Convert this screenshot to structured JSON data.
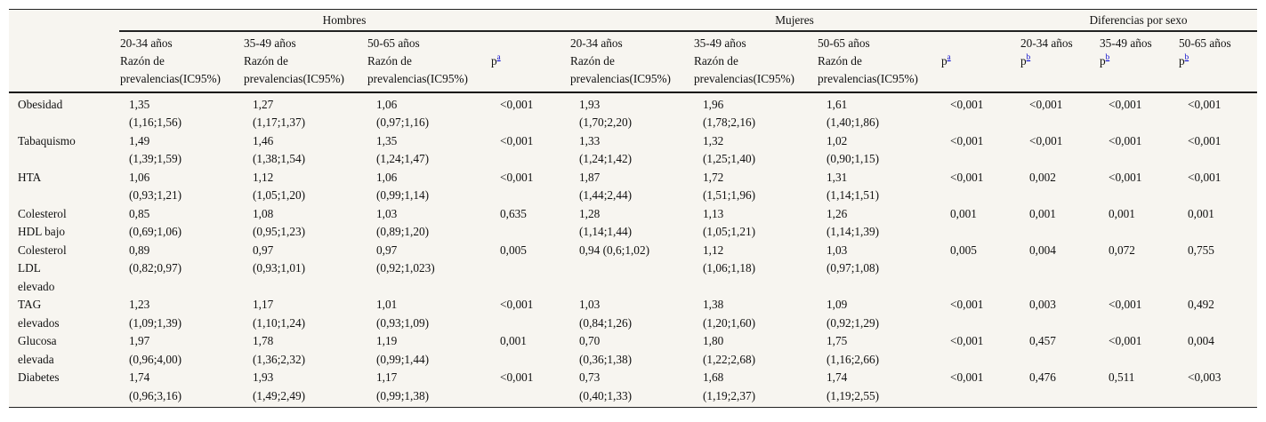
{
  "header": {
    "groups": [
      "Hombres",
      "Mujeres",
      "Diferencias por sexo"
    ],
    "age_groups": [
      "20-34 años",
      "35-49 años",
      "50-65 años"
    ],
    "rp_line1": "Razón de",
    "rp_line2": "prevalencias(IC95%)",
    "p_label": "p",
    "sup_a": "a",
    "sup_b": "b"
  },
  "rows": [
    {
      "label": [
        "Obesidad"
      ],
      "men": [
        [
          "1,35",
          "(1,16;1,56)"
        ],
        [
          "1,27",
          "(1,17;1,37)"
        ],
        [
          "1,06",
          "(0,97;1,16)"
        ]
      ],
      "men_p": "<0,001",
      "women": [
        [
          "1,93",
          "(1,70;2,20)"
        ],
        [
          "1,96",
          "(1,78;2,16)"
        ],
        [
          "1,61",
          "(1,40;1,86)"
        ]
      ],
      "women_p": "<0,001",
      "diff": [
        "<0,001",
        "<0,001",
        "<0,001"
      ]
    },
    {
      "label": [
        "Tabaquismo"
      ],
      "men": [
        [
          "1,49",
          "(1,39;1,59)"
        ],
        [
          "1,46",
          "(1,38;1,54)"
        ],
        [
          "1,35",
          "(1,24;1,47)"
        ]
      ],
      "men_p": "<0,001",
      "women": [
        [
          "1,33",
          "(1,24;1,42)"
        ],
        [
          "1,32",
          "(1,25;1,40)"
        ],
        [
          "1,02",
          "(0,90;1,15)"
        ]
      ],
      "women_p": "<0,001",
      "diff": [
        "<0,001",
        "<0,001",
        "<0,001"
      ]
    },
    {
      "label": [
        "HTA"
      ],
      "men": [
        [
          "1,06",
          "(0,93;1,21)"
        ],
        [
          "1,12",
          "(1,05;1,20)"
        ],
        [
          "1,06",
          "(0,99;1,14)"
        ]
      ],
      "men_p": "<0,001",
      "women": [
        [
          "1,87",
          "(1,44;2,44)"
        ],
        [
          "1,72",
          "(1,51;1,96)"
        ],
        [
          "1,31",
          "(1,14;1,51)"
        ]
      ],
      "women_p": "<0,001",
      "diff": [
        "0,002",
        "<0,001",
        "<0,001"
      ]
    },
    {
      "label": [
        "Colesterol",
        "HDL bajo"
      ],
      "men": [
        [
          "0,85",
          "(0,69;1,06)"
        ],
        [
          "1,08",
          "(0,95;1,23)"
        ],
        [
          "1,03",
          "(0,89;1,20)"
        ]
      ],
      "men_p": "0,635",
      "women": [
        [
          "1,28",
          "(1,14;1,44)"
        ],
        [
          "1,13",
          "(1,05;1,21)"
        ],
        [
          "1,26",
          "(1,14;1,39)"
        ]
      ],
      "women_p": "0,001",
      "diff": [
        "0,001",
        "0,001",
        "0,001"
      ]
    },
    {
      "label": [
        "Colesterol",
        "LDL",
        "elevado"
      ],
      "men": [
        [
          "0,89",
          "(0,82;0,97)"
        ],
        [
          "0,97",
          "(0,93;1,01)"
        ],
        [
          "0,97",
          "(0,92;1,023)"
        ]
      ],
      "men_p": "0,005",
      "women": [
        [
          "0,94 (0,6;1,02)",
          ""
        ],
        [
          "1,12",
          "(1,06;1,18)"
        ],
        [
          "1,03",
          "(0,97;1,08)"
        ]
      ],
      "women_p": "0,005",
      "diff": [
        "0,004",
        "0,072",
        "0,755"
      ]
    },
    {
      "label": [
        "TAG",
        "elevados"
      ],
      "men": [
        [
          "1,23",
          "(1,09;1,39)"
        ],
        [
          "1,17",
          "(1,10;1,24)"
        ],
        [
          "1,01",
          "(0,93;1,09)"
        ]
      ],
      "men_p": "<0,001",
      "women": [
        [
          "1,03",
          "(0,84;1,26)"
        ],
        [
          "1,38",
          "(1,20;1,60)"
        ],
        [
          "1,09",
          "(0,92;1,29)"
        ]
      ],
      "women_p": "<0,001",
      "diff": [
        "0,003",
        "<0,001",
        "0,492"
      ]
    },
    {
      "label": [
        "Glucosa",
        "elevada"
      ],
      "men": [
        [
          "1,97",
          "(0,96;4,00)"
        ],
        [
          "1,78",
          "(1,36;2,32)"
        ],
        [
          "1,19",
          "(0,99;1,44)"
        ]
      ],
      "men_p": "0,001",
      "women": [
        [
          "0,70",
          "(0,36;1,38)"
        ],
        [
          "1,80",
          "(1,22;2,68)"
        ],
        [
          "1,75",
          "(1,16;2,66)"
        ]
      ],
      "women_p": "<0,001",
      "diff": [
        "0,457",
        "<0,001",
        "0,004"
      ]
    },
    {
      "label": [
        "Diabetes"
      ],
      "men": [
        [
          "1,74",
          "(0,96;3,16)"
        ],
        [
          "1,93",
          "(1,49;2,49)"
        ],
        [
          "1,17",
          "(0,99;1,38)"
        ]
      ],
      "men_p": "<0,001",
      "women": [
        [
          "0,73",
          "(0,40;1,33)"
        ],
        [
          "1,68",
          "(1,19;2,37)"
        ],
        [
          "1,74",
          "(1,19;2,55)"
        ]
      ],
      "women_p": "<0,001",
      "diff": [
        "0,476",
        "0,511",
        "<0,003"
      ]
    }
  ]
}
